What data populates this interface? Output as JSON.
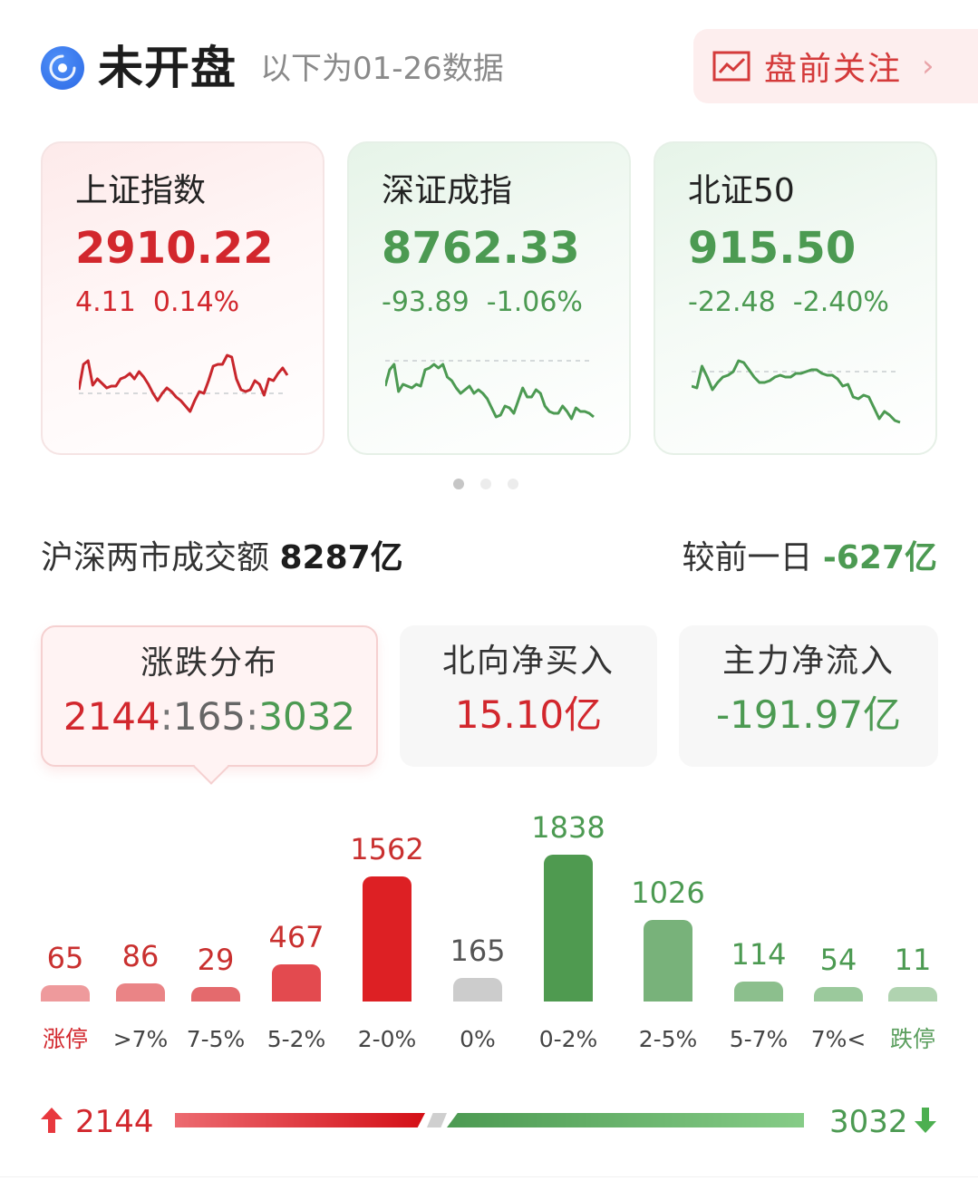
{
  "header": {
    "status_title": "未开盘",
    "data_note": "以下为01-26数据",
    "premarket_button": "盘前关注",
    "premarket_chevron": "›"
  },
  "indices": [
    {
      "name": "上证指数",
      "price": "2910.22",
      "change": "4.11",
      "change_pct": "0.14%",
      "direction": "up",
      "color": "#d2272d",
      "sparkline": [
        40,
        12,
        8,
        35,
        28,
        33,
        38,
        36,
        36,
        28,
        26,
        22,
        28,
        20,
        26,
        34,
        44,
        52,
        44,
        38,
        42,
        48,
        52,
        58,
        64,
        52,
        42,
        44,
        30,
        14,
        12,
        12,
        2,
        4,
        28,
        40,
        42,
        40,
        30,
        34,
        46,
        28,
        30,
        22,
        16,
        24
      ]
    },
    {
      "name": "深证成指",
      "price": "8762.33",
      "change": "-93.89",
      "change_pct": "-1.06%",
      "direction": "down",
      "color": "#4c9a52",
      "sparkline": [
        36,
        18,
        12,
        42,
        34,
        36,
        38,
        34,
        36,
        18,
        16,
        12,
        16,
        12,
        26,
        30,
        38,
        44,
        40,
        36,
        44,
        40,
        44,
        50,
        60,
        70,
        68,
        58,
        60,
        66,
        52,
        38,
        48,
        48,
        40,
        44,
        58,
        64,
        66,
        66,
        58,
        64,
        72,
        60,
        64,
        64,
        66,
        70
      ]
    },
    {
      "name": "北证50",
      "price": "915.50",
      "change": "-22.48",
      "change_pct": "-2.40%",
      "direction": "down",
      "color": "#4c9a52",
      "sparkline": [
        36,
        38,
        14,
        26,
        40,
        32,
        26,
        24,
        20,
        8,
        10,
        18,
        26,
        32,
        32,
        30,
        26,
        24,
        26,
        26,
        22,
        22,
        20,
        18,
        18,
        22,
        24,
        24,
        28,
        36,
        34,
        48,
        50,
        46,
        48,
        60,
        72,
        64,
        68,
        74,
        76
      ]
    }
  ],
  "pager": {
    "count": 3,
    "active": 0
  },
  "turnover": {
    "label": "沪深两市成交额",
    "value": "8287亿",
    "compare_label": "较前一日",
    "compare_value": "-627亿"
  },
  "stats": {
    "distribution": {
      "title": "涨跌分布",
      "up": "2144",
      "flat": "165",
      "down": "3032",
      "sep": ":"
    },
    "northbound": {
      "title": "北向净买入",
      "value": "15.10亿"
    },
    "main_flow": {
      "title": "主力净流入",
      "value": "-191.97亿"
    }
  },
  "chart_data": {
    "type": "bar",
    "title": "涨跌分布",
    "categories": [
      "涨停",
      ">7%",
      "7-5%",
      "5-2%",
      "2-0%",
      "0%",
      "0-2%",
      "2-5%",
      "5-7%",
      "7%<",
      "跌停"
    ],
    "values": [
      65,
      86,
      29,
      467,
      1562,
      165,
      1838,
      1026,
      114,
      54,
      11
    ],
    "colors": [
      "#ee9a9c",
      "#ea8486",
      "#e46a6d",
      "#e34a4f",
      "#dd2024",
      "#cccccc",
      "#4f9a50",
      "#78b27a",
      "#8cbf8d",
      "#9bc99c",
      "#b0d3b0"
    ],
    "label_colors": [
      "#d2272d",
      "#444444",
      "#444444",
      "#444444",
      "#444444",
      "#444444",
      "#444444",
      "#444444",
      "#444444",
      "#444444",
      "#5a9e5d"
    ],
    "value_colors": [
      "#c9302f",
      "#c9302f",
      "#c9302f",
      "#c9302f",
      "#c9302f",
      "#555555",
      "#4c9a52",
      "#4c9a52",
      "#4c9a52",
      "#4c9a52",
      "#4c9a52"
    ],
    "xlabel": "",
    "ylabel": "",
    "grid": false,
    "legend": "none"
  },
  "ratio_bar": {
    "up_count": "2144",
    "down_count": "3032",
    "up_icon": "arrow-up-icon",
    "down_icon": "arrow-down-icon"
  }
}
